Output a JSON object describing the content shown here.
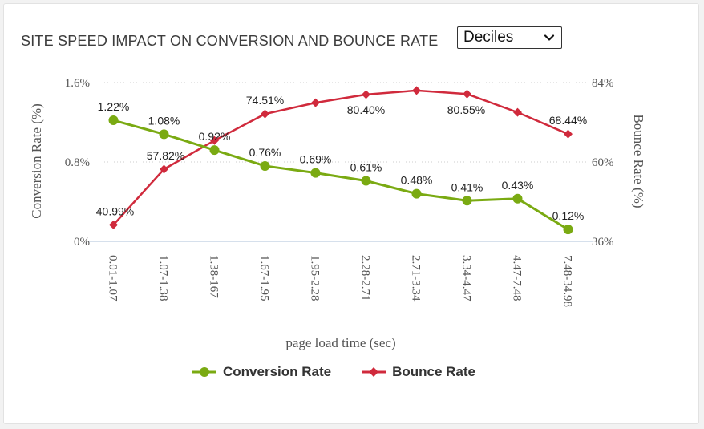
{
  "title": "SITE SPEED IMPACT ON CONVERSION AND BOUNCE RATE",
  "dropdown": {
    "selected": "Deciles"
  },
  "colors": {
    "conversion": "#7aaa12",
    "bounce": "#d02a3c",
    "grid": "#cccccc",
    "baseline": "#c9d6e6"
  },
  "icons": {
    "dropdown": "chevron-down-icon",
    "conversion_marker": "circle-marker",
    "bounce_marker": "diamond-marker"
  },
  "chart_data": {
    "type": "line",
    "categories": [
      "0.01-1.07",
      "1.07-1.38",
      "1.38-167",
      "1.67-1.95",
      "1.95-2.28",
      "2.28-2.71",
      "2.71-3.34",
      "3.34-4.47",
      "4.47-7.48",
      "7.48-34.98"
    ],
    "xlabel": "page load time (sec)",
    "y_left": {
      "label": "Conversion Rate (%)",
      "range": [
        0,
        1.6
      ],
      "ticks": [
        "0%",
        "0.8%",
        "1.6%"
      ]
    },
    "y_right": {
      "label": "Bounce Rate (%)",
      "range": [
        36,
        84
      ],
      "ticks": [
        "36%",
        "60%",
        "84%"
      ]
    },
    "grid": true,
    "legend_position": "bottom",
    "series": [
      {
        "name": "Conversion Rate",
        "axis": "left",
        "marker": "circle",
        "values": [
          1.22,
          1.08,
          0.92,
          0.76,
          0.69,
          0.61,
          0.48,
          0.41,
          0.43,
          0.12
        ],
        "labels": [
          "1.22%",
          "1.08%",
          "0.92%",
          "0.76%",
          "0.69%",
          "0.61%",
          "0.48%",
          "0.41%",
          "0.43%",
          "0.12%"
        ]
      },
      {
        "name": "Bounce Rate",
        "axis": "right",
        "marker": "diamond",
        "values": [
          40.99,
          57.82,
          66.5,
          74.51,
          77.9,
          80.4,
          81.6,
          80.55,
          75.0,
          68.44
        ],
        "labels": [
          "40.99%",
          "57.82%",
          "",
          "74.51%",
          "",
          "80.40%",
          "",
          "80.55%",
          "",
          "68.44%"
        ]
      }
    ]
  }
}
